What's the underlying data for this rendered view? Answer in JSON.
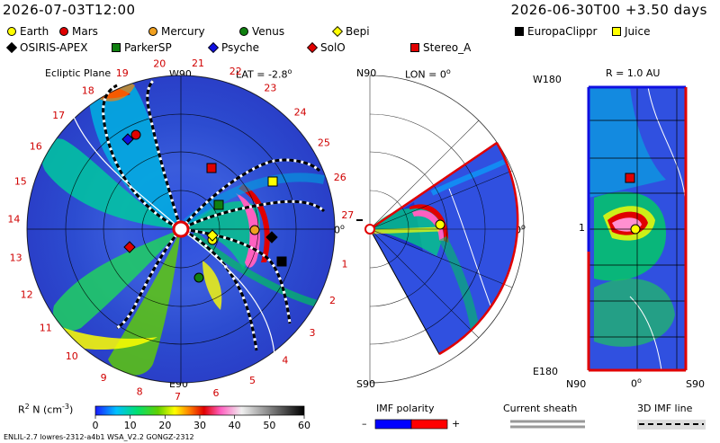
{
  "header": {
    "left_time": "2026-07-03T12:00",
    "right_time": "2026-06-30T00 +3.50 days"
  },
  "legend": {
    "items": [
      {
        "label": "Earth",
        "shape": "circle",
        "color": "#ffff00"
      },
      {
        "label": "Mars",
        "shape": "circle",
        "color": "#e00000"
      },
      {
        "label": "Mercury",
        "shape": "circle",
        "color": "#f0a020"
      },
      {
        "label": "Venus",
        "shape": "circle",
        "color": "#108010"
      },
      {
        "label": "Bepi",
        "shape": "diamond",
        "color": "#ffff00"
      },
      {
        "label": "EuropaClippr",
        "shape": "square",
        "color": "#000000"
      },
      {
        "label": "Juice",
        "shape": "square",
        "color": "#ffff00"
      },
      {
        "label": "OSIRIS-APEX",
        "shape": "diamond",
        "color": "#000000"
      },
      {
        "label": "ParkerSP",
        "shape": "square",
        "color": "#108010"
      },
      {
        "label": "Psyche",
        "shape": "diamond",
        "color": "#1010e0"
      },
      {
        "label": "SolO",
        "shape": "diamond",
        "color": "#e00000"
      },
      {
        "label": "Stereo_A",
        "shape": "square",
        "color": "#e00000"
      }
    ]
  },
  "panels": {
    "ecliptic": {
      "title": "Ecliptic Plane",
      "lat": "LAT = -2.8",
      "lat_sup": "o",
      "top_label": "W90",
      "bottom_label": "E90",
      "right_label": "0",
      "right_sup": "o",
      "carrington_labels": [
        "1",
        "2",
        "3",
        "4",
        "5",
        "6",
        "7",
        "8",
        "9",
        "10",
        "11",
        "12",
        "13",
        "14",
        "15",
        "16",
        "17",
        "18",
        "19",
        "20",
        "21",
        "22",
        "23",
        "24",
        "25",
        "26",
        "27"
      ]
    },
    "meridional": {
      "lon": "LON = 0",
      "lon_sup": "o",
      "top_label": "N90",
      "bottom_label": "S90",
      "right_label": "0",
      "right_sup": "o"
    },
    "radial": {
      "title": "R = 1.0 AU",
      "top_left": "W180",
      "bottom_left": "E180",
      "mid_left": "1",
      "bottom_labels": [
        "N90",
        "0",
        "S90"
      ],
      "bottom_mid_sup": "o"
    }
  },
  "colorbar": {
    "label": "R",
    "label_sup": "2",
    "label_rest": " N (cm",
    "label_exp": "-3",
    "label_end": ")",
    "ticks": [
      "0",
      "10",
      "20",
      "30",
      "40",
      "50",
      "60"
    ]
  },
  "imf": {
    "title": "IMF polarity",
    "minus": "–",
    "plus": "+",
    "colors": {
      "negative": "#0000ff",
      "positive": "#ff0000"
    }
  },
  "sheath": {
    "title": "Current sheath"
  },
  "imf3d": {
    "title": "3D IMF line"
  },
  "footer": {
    "version": "ENLIL-2.7 lowres-2312-a4b1 WSA_V2.2 GONGZ-2312"
  }
}
